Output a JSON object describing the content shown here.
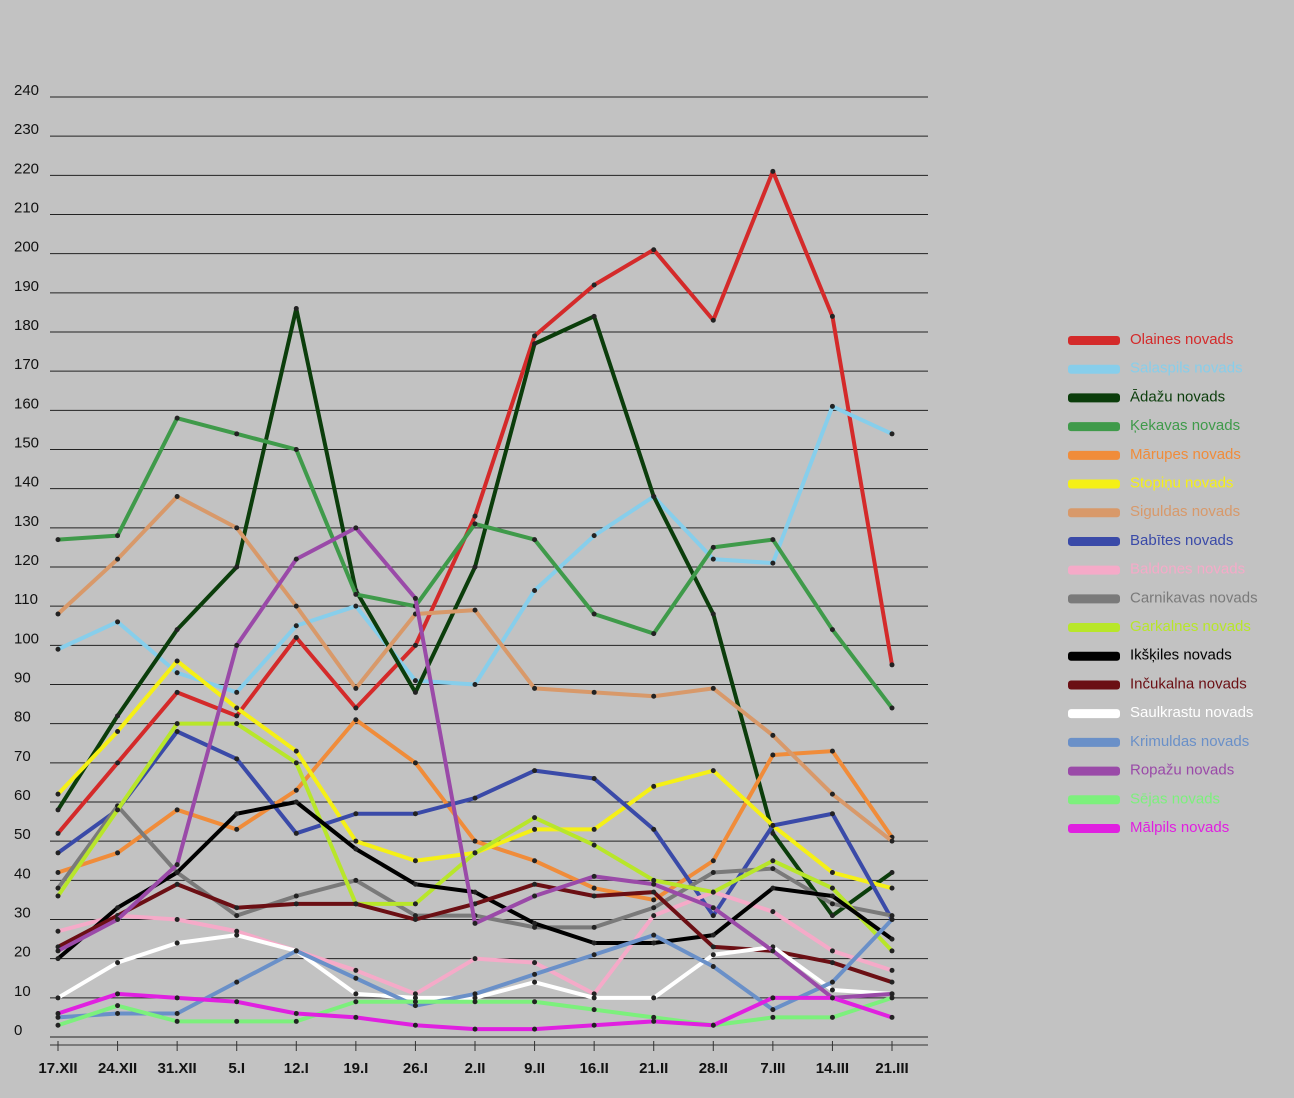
{
  "chart_data": {
    "type": "line",
    "categories": [
      "17.XII",
      "24.XII",
      "31.XII",
      "5.I",
      "12.I",
      "19.I",
      "26.I",
      "2.II",
      "9.II",
      "16.II",
      "21.II",
      "28.II",
      "7.III",
      "14.III",
      "21.III"
    ],
    "ylim": [
      0,
      240
    ],
    "yticks": [
      0,
      10,
      20,
      30,
      40,
      50,
      60,
      70,
      80,
      90,
      100,
      110,
      120,
      130,
      140,
      150,
      160,
      170,
      180,
      190,
      200,
      210,
      220,
      230,
      240
    ],
    "grid": true,
    "legend": "right",
    "series": [
      {
        "name": "Olaines novads",
        "color": "#d42a2a",
        "values": [
          52,
          70,
          88,
          82,
          102,
          84,
          100,
          133,
          179,
          192,
          201,
          183,
          221,
          184,
          95
        ]
      },
      {
        "name": "Salaspils novads",
        "color": "#87ceeb",
        "values": [
          99,
          106,
          93,
          88,
          105,
          110,
          91,
          90,
          114,
          128,
          138,
          122,
          121,
          161,
          154
        ]
      },
      {
        "name": "Ādažu novads",
        "color": "#0b3d0b",
        "values": [
          58,
          82,
          104,
          120,
          186,
          114,
          88,
          120,
          177,
          184,
          138,
          108,
          52,
          31,
          42
        ]
      },
      {
        "name": "Ķekavas novads",
        "color": "#3f9a4a",
        "values": [
          127,
          128,
          158,
          154,
          150,
          113,
          110,
          131,
          127,
          108,
          103,
          125,
          127,
          104,
          84
        ]
      },
      {
        "name": "Mārupes novads",
        "color": "#f08c3a",
        "values": [
          42,
          47,
          58,
          53,
          63,
          81,
          70,
          50,
          45,
          38,
          35,
          45,
          72,
          73,
          51
        ]
      },
      {
        "name": "Stopiņu novads",
        "color": "#f5f016",
        "values": [
          62,
          78,
          96,
          84,
          73,
          50,
          45,
          47,
          53,
          53,
          64,
          68,
          54,
          42,
          38
        ]
      },
      {
        "name": "Siguldas novads",
        "color": "#d8996a",
        "values": [
          108,
          122,
          138,
          130,
          110,
          89,
          108,
          109,
          89,
          88,
          87,
          89,
          77,
          62,
          50
        ]
      },
      {
        "name": "Babītes novads",
        "color": "#3a4aa8",
        "values": [
          47,
          58,
          78,
          71,
          52,
          57,
          57,
          61,
          68,
          66,
          53,
          31,
          54,
          57,
          30
        ]
      },
      {
        "name": "Baldones novads",
        "color": "#f5aac8",
        "values": [
          27,
          31,
          30,
          27,
          22,
          17,
          11,
          20,
          19,
          11,
          31,
          37,
          32,
          22,
          17
        ]
      },
      {
        "name": "Carnikavas novads",
        "color": "#7a7a7a",
        "values": [
          38,
          59,
          42,
          31,
          36,
          40,
          31,
          31,
          28,
          28,
          33,
          42,
          43,
          34,
          31
        ]
      },
      {
        "name": "Garkalnes novads",
        "color": "#b8e62a",
        "values": [
          36,
          58,
          80,
          80,
          70,
          34,
          34,
          47,
          56,
          49,
          40,
          37,
          45,
          38,
          22
        ]
      },
      {
        "name": "Ikšķiles novads",
        "color": "#000000",
        "values": [
          20,
          33,
          42,
          57,
          60,
          48,
          39,
          37,
          29,
          24,
          24,
          26,
          38,
          36,
          25
        ]
      },
      {
        "name": "Inčukalna novads",
        "color": "#6b0f14",
        "values": [
          23,
          31,
          39,
          33,
          34,
          34,
          30,
          34,
          39,
          36,
          37,
          23,
          22,
          19,
          14
        ]
      },
      {
        "name": "Saulkrastu novads",
        "color": "#ffffff",
        "values": [
          10,
          19,
          24,
          26,
          22,
          11,
          10,
          10,
          14,
          10,
          10,
          21,
          23,
          12,
          11
        ]
      },
      {
        "name": "Krimuldas novads",
        "color": "#6a90c8",
        "values": [
          5,
          6,
          6,
          14,
          22,
          15,
          8,
          11,
          16,
          21,
          26,
          18,
          7,
          14,
          30
        ]
      },
      {
        "name": "Ropažu novads",
        "color": "#9a4aa8",
        "values": [
          22,
          30,
          44,
          100,
          122,
          130,
          112,
          29,
          36,
          41,
          39,
          33,
          22,
          10,
          11
        ]
      },
      {
        "name": "Sējas novads",
        "color": "#7cf07c",
        "values": [
          3,
          8,
          4,
          4,
          4,
          9,
          9,
          9,
          9,
          7,
          5,
          3,
          5,
          5,
          10
        ]
      },
      {
        "name": "Mālpils novads",
        "color": "#e020e0",
        "values": [
          6,
          11,
          10,
          9,
          6,
          5,
          3,
          2,
          2,
          3,
          4,
          3,
          10,
          10,
          5
        ]
      }
    ]
  }
}
